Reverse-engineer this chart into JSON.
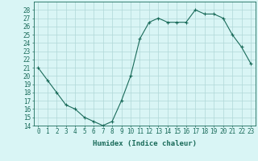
{
  "x": [
    0,
    1,
    2,
    3,
    4,
    5,
    6,
    7,
    8,
    9,
    10,
    11,
    12,
    13,
    14,
    15,
    16,
    17,
    18,
    19,
    20,
    21,
    22,
    23
  ],
  "y": [
    21,
    19.5,
    18,
    16.5,
    16,
    15,
    14.5,
    14,
    14.5,
    17,
    20,
    24.5,
    26.5,
    27,
    26.5,
    26.5,
    26.5,
    28,
    27.5,
    27.5,
    27,
    25,
    23.5,
    21.5
  ],
  "line_color": "#1a6b5a",
  "marker_color": "#1a6b5a",
  "bg_color": "#d9f5f5",
  "grid_color": "#b0d8d8",
  "xlabel": "Humidex (Indice chaleur)",
  "ylim": [
    14,
    29
  ],
  "xlim": [
    -0.5,
    23.5
  ],
  "yticks": [
    14,
    15,
    16,
    17,
    18,
    19,
    20,
    21,
    22,
    23,
    24,
    25,
    26,
    27,
    28
  ],
  "xticks": [
    0,
    1,
    2,
    3,
    4,
    5,
    6,
    7,
    8,
    9,
    10,
    11,
    12,
    13,
    14,
    15,
    16,
    17,
    18,
    19,
    20,
    21,
    22,
    23
  ],
  "xtick_labels": [
    "0",
    "1",
    "2",
    "3",
    "4",
    "5",
    "6",
    "7",
    "8",
    "9",
    "10",
    "11",
    "12",
    "13",
    "14",
    "15",
    "16",
    "17",
    "18",
    "19",
    "20",
    "21",
    "22",
    "23"
  ],
  "font_color": "#1a6b5a",
  "axis_color": "#1a6b5a",
  "tick_fontsize": 5.5,
  "xlabel_fontsize": 6.5
}
